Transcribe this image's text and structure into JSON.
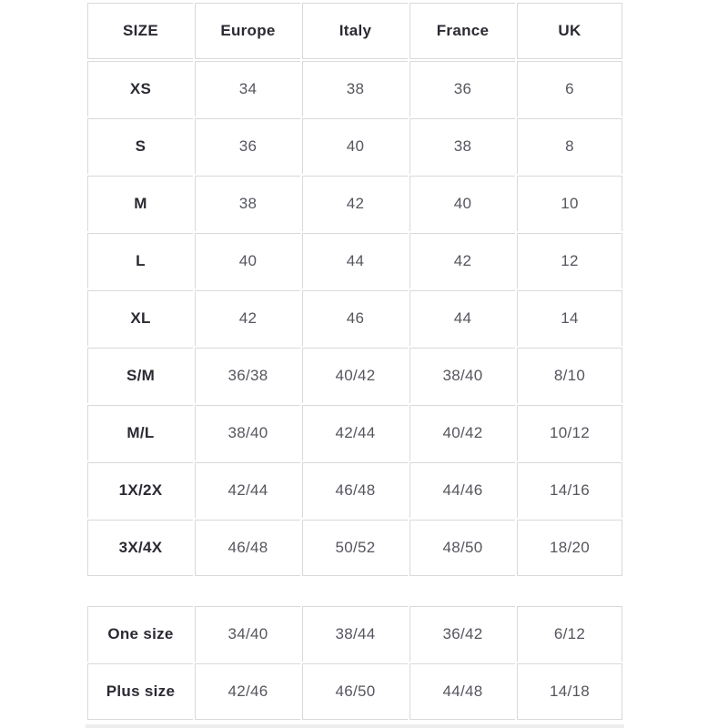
{
  "colors": {
    "background": "#ffffff",
    "cell_border": "#d9d9d9",
    "header_text": "#2b2a33",
    "value_text": "#55565e",
    "bottom_divider": "#ededee"
  },
  "main_table": {
    "columns": [
      "SIZE",
      "Europe",
      "Italy",
      "France",
      "UK"
    ],
    "rows": [
      {
        "size": "XS",
        "values": [
          "34",
          "38",
          "36",
          "6"
        ]
      },
      {
        "size": "S",
        "values": [
          "36",
          "40",
          "38",
          "8"
        ]
      },
      {
        "size": "M",
        "values": [
          "38",
          "42",
          "40",
          "10"
        ]
      },
      {
        "size": "L",
        "values": [
          "40",
          "44",
          "42",
          "12"
        ]
      },
      {
        "size": "XL",
        "values": [
          "42",
          "46",
          "44",
          "14"
        ]
      },
      {
        "size": "S/M",
        "values": [
          "36/38",
          "40/42",
          "38/40",
          "8/10"
        ]
      },
      {
        "size": "M/L",
        "values": [
          "38/40",
          "42/44",
          "40/42",
          "10/12"
        ]
      },
      {
        "size": "1X/2X",
        "values": [
          "42/44",
          "46/48",
          "44/46",
          "14/16"
        ]
      },
      {
        "size": "3X/4X",
        "values": [
          "46/48",
          "50/52",
          "48/50",
          "18/20"
        ]
      }
    ]
  },
  "secondary_table": {
    "rows": [
      {
        "size": "One size",
        "values": [
          "34/40",
          "38/44",
          "36/42",
          "6/12"
        ]
      },
      {
        "size": "Plus size",
        "values": [
          "42/46",
          "46/50",
          "44/48",
          "14/18"
        ]
      }
    ]
  }
}
